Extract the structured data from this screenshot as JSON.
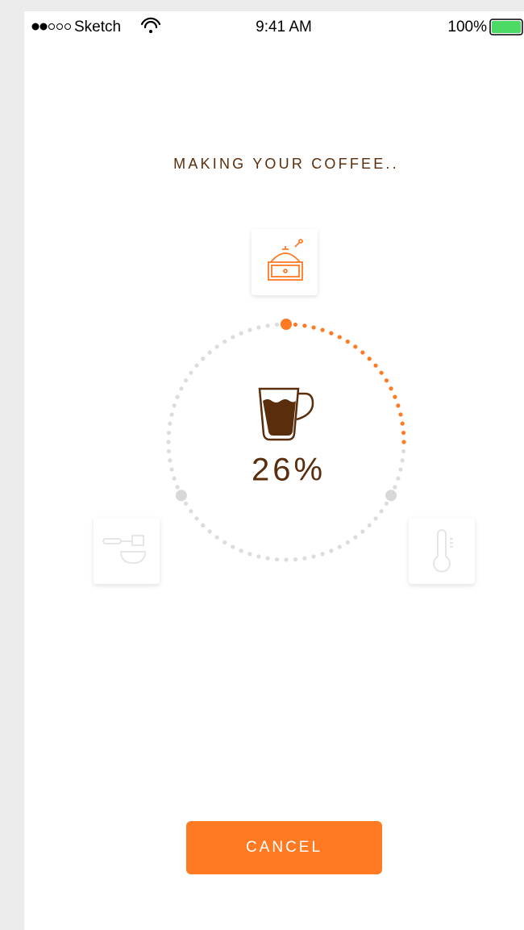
{
  "status": {
    "carrier": "Sketch",
    "time": "9:41 AM",
    "battery": "100%"
  },
  "title": "MAKING YOUR COFFEE..",
  "progress": {
    "value": 26,
    "label": "26%"
  },
  "button": "CANCEL"
}
